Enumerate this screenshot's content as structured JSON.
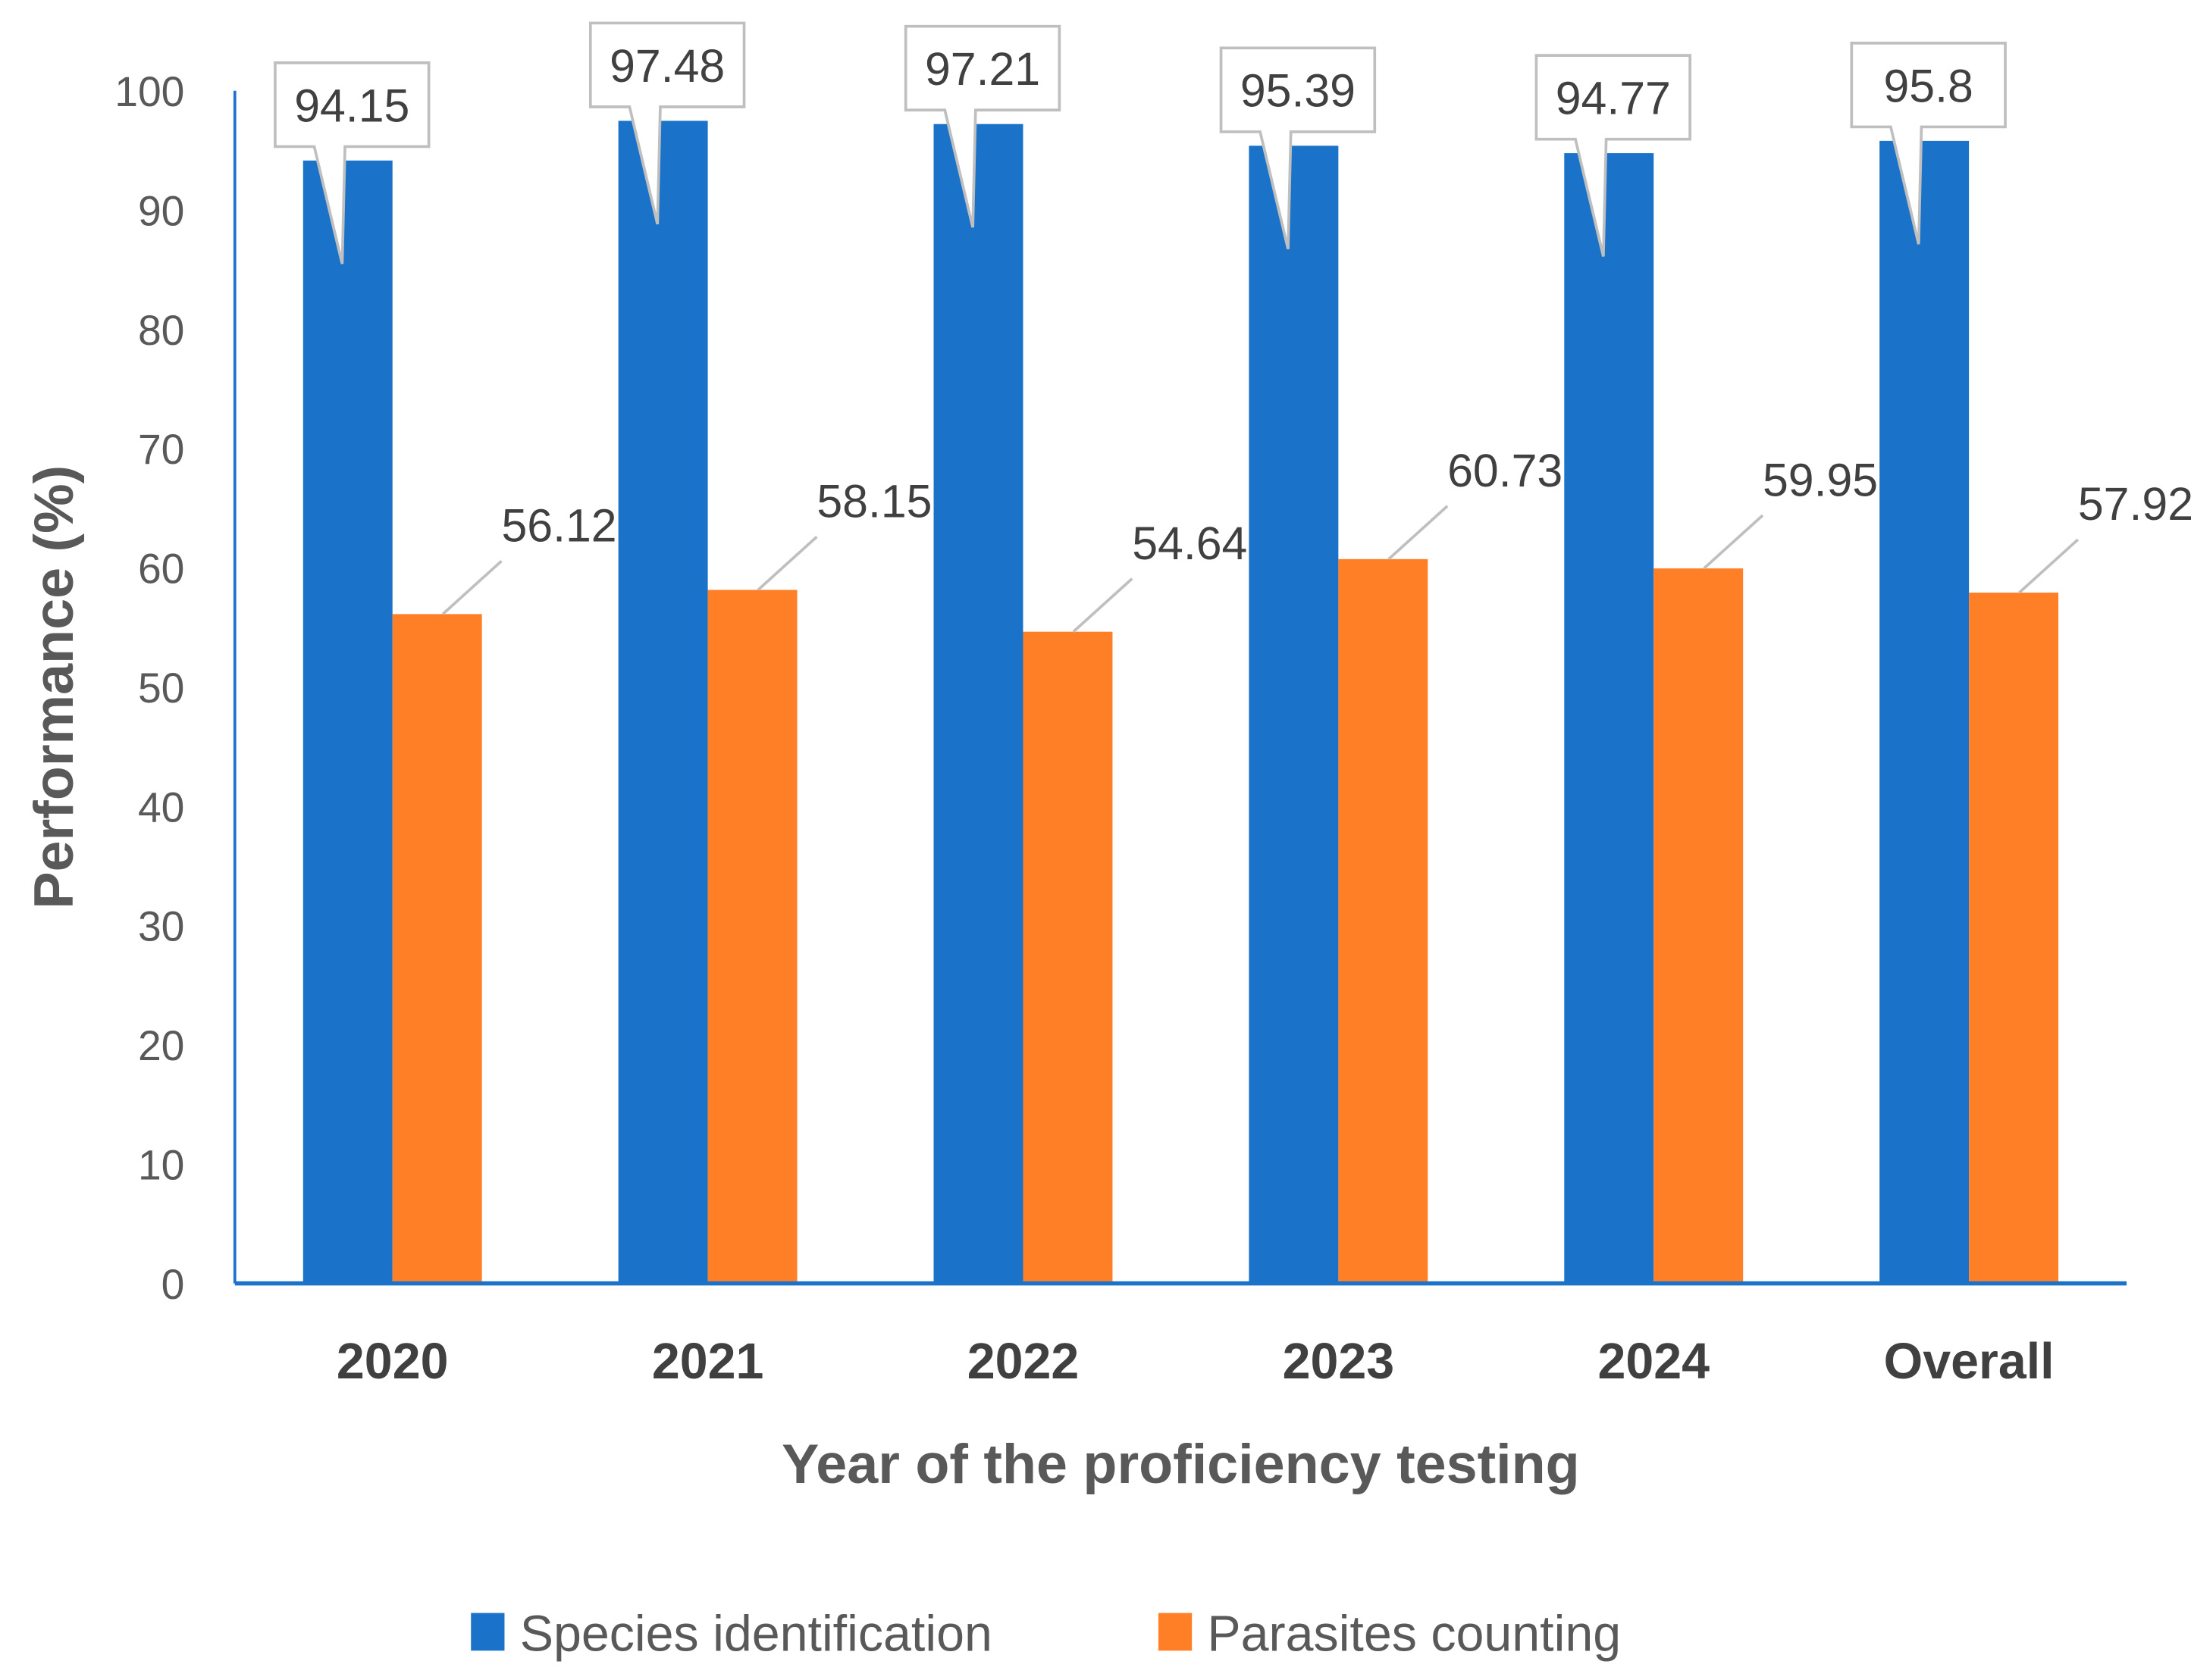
{
  "chart_data": {
    "type": "bar",
    "title": "",
    "xlabel": "Year of the proficiency testing",
    "ylabel": "Performance (%)",
    "ylim": [
      0,
      100
    ],
    "yticks": [
      0,
      10,
      20,
      30,
      40,
      50,
      60,
      70,
      80,
      90,
      100
    ],
    "grid": false,
    "legend_position": "bottom",
    "categories": [
      "2020",
      "2021",
      "2022",
      "2023",
      "2024",
      "Overall"
    ],
    "series": [
      {
        "name": "Species identification",
        "color": "#1A73C8",
        "values": [
          94.15,
          97.48,
          97.21,
          95.39,
          94.77,
          95.8
        ],
        "labels": [
          "94.15",
          "97.48",
          "97.21",
          "95.39",
          "94.77",
          "95.8"
        ]
      },
      {
        "name": "Parasites counting",
        "color": "#FF7F27",
        "values": [
          56.12,
          58.15,
          54.64,
          60.73,
          59.95,
          57.92
        ],
        "labels": [
          "56.12",
          "58.15",
          "54.64",
          "60.73",
          "59.95",
          "57.92"
        ]
      }
    ]
  }
}
